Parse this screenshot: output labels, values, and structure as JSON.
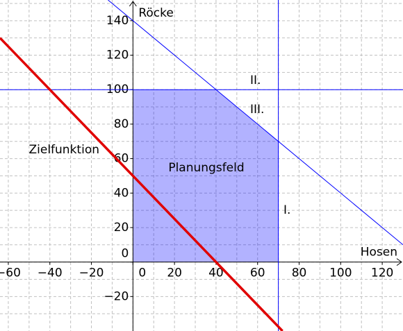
{
  "chart_data": {
    "type": "linear-optimization",
    "x_label": "Hosen",
    "y_label": "Röcke",
    "xlim": [
      -64,
      130
    ],
    "ylim": [
      -40,
      152
    ],
    "xticks": [
      {
        "value": -60,
        "label": "−60"
      },
      {
        "value": -40,
        "label": "−40"
      },
      {
        "value": -20,
        "label": "−20"
      },
      0,
      20,
      40,
      60,
      80,
      100,
      120
    ],
    "yticks": [
      {
        "value": -20,
        "label": "−20"
      },
      0,
      20,
      40,
      60,
      80,
      100,
      120,
      140
    ],
    "xgrid": [
      -60,
      -50,
      -40,
      -30,
      -20,
      -10,
      0,
      10,
      20,
      30,
      40,
      50,
      60,
      70,
      80,
      90,
      100,
      110,
      120
    ],
    "ygrid": [
      -30,
      -20,
      -10,
      0,
      10,
      20,
      30,
      40,
      50,
      60,
      70,
      80,
      90,
      100,
      110,
      120,
      130,
      140,
      150
    ],
    "grid": true,
    "region": {
      "name": "Planungsfeld",
      "color": "#0000ff",
      "x": [
        0,
        70,
        70,
        40,
        0
      ],
      "values": [
        0,
        0,
        70,
        100,
        100
      ]
    },
    "series": [
      {
        "name": "I.",
        "color": "#0000ff",
        "x": [
          70,
          70
        ],
        "values": [
          -40,
          152
        ]
      },
      {
        "name": "II.",
        "color": "#0000ff",
        "x": [
          -64,
          130
        ],
        "values": [
          100,
          100
        ]
      },
      {
        "name": "III.",
        "color": "#0000ff",
        "x": [
          -12,
          130
        ],
        "values": [
          152,
          10
        ]
      },
      {
        "name": "Zielfunktion",
        "color": "#e00000",
        "x": [
          -64,
          72
        ],
        "values": [
          130,
          -40
        ]
      }
    ]
  }
}
